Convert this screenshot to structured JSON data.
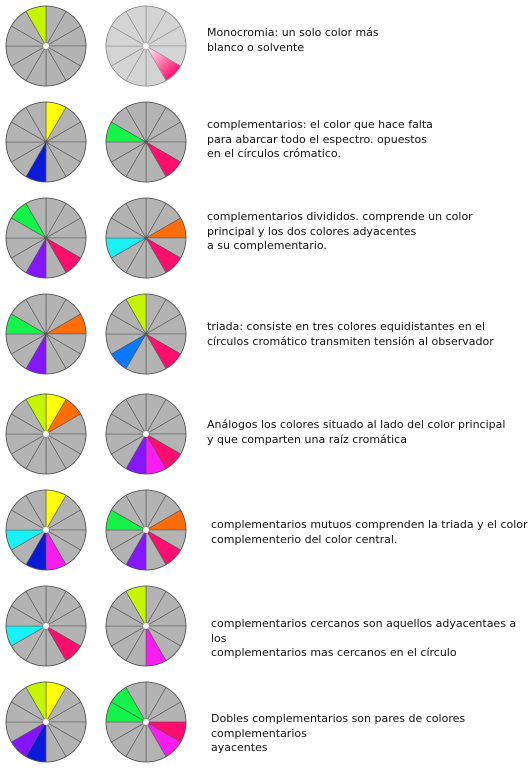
{
  "palette": {
    "base": "#b3b3b3",
    "pale": "#d4d4d4",
    "line": "#555555",
    "pale_line": "#8c8c8c",
    "yellow": "#ffff00",
    "yellow_green": "#c5f500",
    "green": "#15f24a",
    "cyan": "#18f2f5",
    "blue": "#0b1ad6",
    "azure": "#0a78ff",
    "violet": "#8615ff",
    "magenta": "#fa1cf0",
    "pink": "#ff0e6d",
    "orange": "#ff6d08"
  },
  "rows": [
    {
      "caption": "Monocromia:  un solo color más\nblanco o solvente",
      "wheels": [
        {
          "style": "solid",
          "hub": true,
          "colored": [
            {
              "sector": 11,
              "color": "yellow_green"
            }
          ]
        },
        {
          "style": "pale",
          "hub": true,
          "colored": [
            {
              "sector": 4,
              "color": "pink",
              "gradient": true
            }
          ]
        }
      ]
    },
    {
      "caption": "complementarios:  el color  que hace falta\npara abarcar todo el espectro. opuestos\nen el círculos crómatico.",
      "wheels": [
        {
          "style": "solid",
          "hub": false,
          "colored": [
            {
              "sector": 0,
              "color": "yellow"
            },
            {
              "sector": 6,
              "color": "blue"
            }
          ]
        },
        {
          "style": "solid",
          "hub": false,
          "colored": [
            {
              "sector": 4,
              "color": "pink"
            },
            {
              "sector": 9,
              "color": "green"
            }
          ]
        }
      ]
    },
    {
      "caption": "complementarios divididos. comprende un color\nprincipal y los dos colores adyacentes\na su complementario.",
      "wheels": [
        {
          "style": "solid",
          "hub": false,
          "colored": [
            {
              "sector": 4,
              "color": "pink"
            },
            {
              "sector": 6,
              "color": "violet"
            },
            {
              "sector": 10,
              "color": "green"
            }
          ]
        },
        {
          "style": "solid",
          "hub": false,
          "colored": [
            {
              "sector": 2,
              "color": "orange"
            },
            {
              "sector": 4,
              "color": "pink"
            },
            {
              "sector": 8,
              "color": "cyan"
            }
          ]
        }
      ]
    },
    {
      "caption": "triada:  consiste en tres colores equidistantes en el\ncírculos cromático  transmiten tensión al observador",
      "wheels": [
        {
          "style": "solid",
          "hub": false,
          "colored": [
            {
              "sector": 2,
              "color": "orange"
            },
            {
              "sector": 6,
              "color": "violet"
            },
            {
              "sector": 9,
              "color": "green"
            }
          ]
        },
        {
          "style": "solid",
          "hub": false,
          "colored": [
            {
              "sector": 4,
              "color": "pink"
            },
            {
              "sector": 7,
              "color": "azure"
            },
            {
              "sector": 11,
              "color": "yellow_green"
            }
          ]
        }
      ]
    },
    {
      "caption": "Análogos los colores situado al lado del color principal\ny que comparten una raíz cromática",
      "wheels": [
        {
          "style": "solid",
          "hub": true,
          "colored": [
            {
              "sector": 0,
              "color": "yellow"
            },
            {
              "sector": 1,
              "color": "orange"
            },
            {
              "sector": 11,
              "color": "yellow_green"
            }
          ]
        },
        {
          "style": "solid",
          "hub": true,
          "colored": [
            {
              "sector": 4,
              "color": "pink"
            },
            {
              "sector": 5,
              "color": "magenta"
            },
            {
              "sector": 6,
              "color": "violet"
            }
          ]
        }
      ]
    },
    {
      "caption": "complementarios mutuos comprenden la triada y el color\ncomplementerio del color central.",
      "wheels": [
        {
          "style": "solid",
          "hub": true,
          "colored": [
            {
              "sector": 0,
              "color": "yellow"
            },
            {
              "sector": 5,
              "color": "magenta"
            },
            {
              "sector": 6,
              "color": "blue"
            },
            {
              "sector": 8,
              "color": "cyan"
            }
          ]
        },
        {
          "style": "solid",
          "hub": true,
          "colored": [
            {
              "sector": 2,
              "color": "orange"
            },
            {
              "sector": 4,
              "color": "pink"
            },
            {
              "sector": 6,
              "color": "violet"
            },
            {
              "sector": 9,
              "color": "green"
            }
          ]
        }
      ]
    },
    {
      "caption": "complementarios cercanos son aquellos adyacentaes a los\ncomplementarios  mas cercanos en el círculo",
      "wheels": [
        {
          "style": "solid",
          "hub": true,
          "colored": [
            {
              "sector": 4,
              "color": "pink"
            },
            {
              "sector": 8,
              "color": "cyan"
            }
          ]
        },
        {
          "style": "solid",
          "hub": true,
          "colored": [
            {
              "sector": 5,
              "color": "magenta"
            },
            {
              "sector": 11,
              "color": "yellow_green"
            }
          ]
        }
      ]
    },
    {
      "caption": "Dobles complementarios son pares de colores complementarios\nayacentes",
      "wheels": [
        {
          "style": "solid",
          "hub": true,
          "colored": [
            {
              "sector": 0,
              "color": "yellow"
            },
            {
              "sector": 6,
              "color": "blue"
            },
            {
              "sector": 7,
              "color": "violet"
            },
            {
              "sector": 11,
              "color": "yellow_green"
            }
          ]
        },
        {
          "style": "solid",
          "hub": true,
          "colored": [
            {
              "sector": 3,
              "color": "pink"
            },
            {
              "sector": 4,
              "color": "magenta"
            },
            {
              "sector": 9,
              "color": "green"
            },
            {
              "sector": 10,
              "color": "green"
            }
          ]
        }
      ]
    }
  ]
}
